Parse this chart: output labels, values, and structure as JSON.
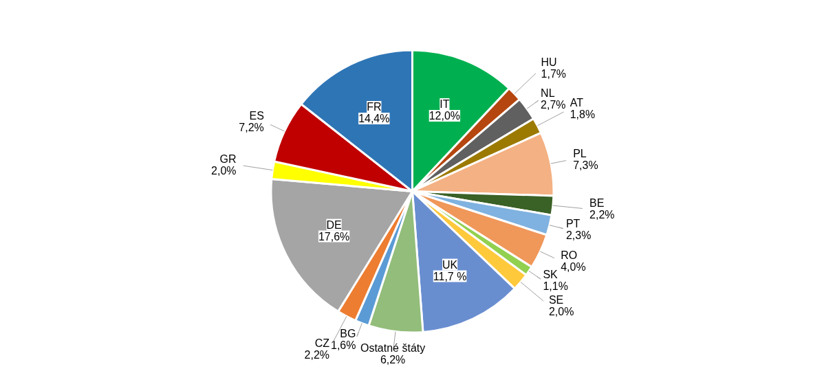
{
  "chart_data": {
    "type": "pie",
    "categories": [
      "IT",
      "HU",
      "NL",
      "AT",
      "PL",
      "BE",
      "PT",
      "RO",
      "SK",
      "SE",
      "UK",
      "Ostatné štáty",
      "BG",
      "CZ",
      "DE",
      "GR",
      "ES",
      "FR"
    ],
    "values": [
      12.0,
      1.7,
      2.7,
      1.8,
      7.3,
      2.2,
      2.3,
      4.0,
      1.1,
      2.0,
      11.7,
      6.2,
      1.6,
      2.2,
      17.6,
      2.0,
      7.2,
      14.4
    ],
    "colors": [
      "#00b050",
      "#b5460f",
      "#606060",
      "#9c7a00",
      "#f4b183",
      "#3a6126",
      "#7fb2e0",
      "#f0975a",
      "#92d050",
      "#ffc93c",
      "#698ed0",
      "#93bd7a",
      "#5b9bd5",
      "#ed7d31",
      "#a5a5a5",
      "#ffff00",
      "#c00000",
      "#2e75b6"
    ],
    "value_labels": [
      "12,0%",
      "1,7%",
      "2,7%",
      "1,8%",
      "7,3%",
      "2,2%",
      "2,3%",
      "4,0%",
      "1,1%",
      "2,0%",
      "11,7 %",
      "6,2%",
      "1,6%",
      "2,2%",
      "17,6%",
      "2,0%",
      "7,2%",
      "14,4%"
    ]
  }
}
